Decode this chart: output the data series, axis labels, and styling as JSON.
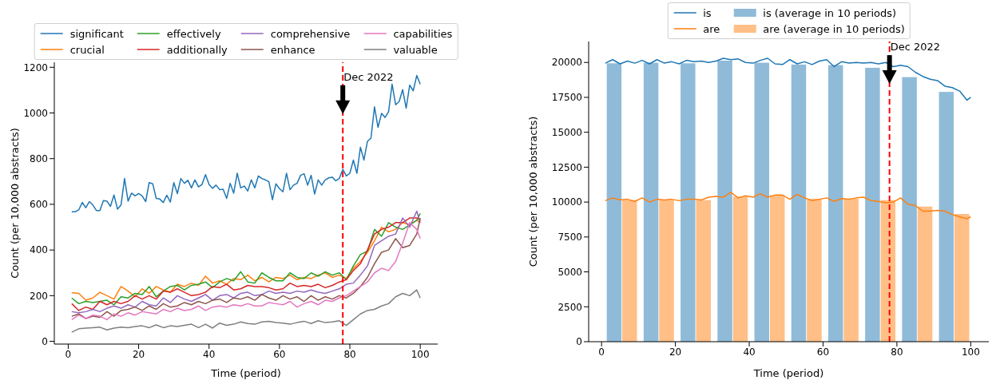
{
  "chart_data": [
    {
      "type": "line",
      "xlabel": "Time (period)",
      "ylabel": "Count (per 10,000 abstracts)",
      "xlim": [
        -3.95,
        104.95
      ],
      "ylim": [
        -12,
        1222
      ],
      "xticks": [
        0,
        20,
        40,
        60,
        80,
        100
      ],
      "yticks": [
        0,
        200,
        400,
        600,
        800,
        1000,
        1200
      ],
      "legend": "top",
      "ref_lines": [
        {
          "axis": "x",
          "value": 78,
          "color": "#ff0000",
          "line_style": "dashed"
        }
      ],
      "annotations": [
        {
          "text": "Dec 2022",
          "x": 78,
          "y": 1160
        }
      ],
      "series": [
        {
          "name": "significant",
          "color": "#1f77b4",
          "x": [
            1,
            2,
            3,
            4,
            5,
            6,
            7,
            8,
            9,
            10,
            11,
            12,
            13,
            14,
            15,
            16,
            17,
            18,
            19,
            20,
            21,
            22,
            23,
            24,
            25,
            26,
            27,
            28,
            29,
            30,
            31,
            32,
            33,
            34,
            35,
            36,
            37,
            38,
            39,
            40,
            41,
            42,
            43,
            44,
            45,
            46,
            47,
            48,
            49,
            50,
            51,
            52,
            53,
            54,
            55,
            56,
            57,
            58,
            59,
            60,
            61,
            62,
            63,
            64,
            65,
            66,
            67,
            68,
            69,
            70,
            71,
            72,
            73,
            74,
            75,
            76,
            77,
            78,
            79,
            80,
            81,
            82,
            83,
            84,
            85,
            86,
            87,
            88,
            89,
            90,
            91,
            92,
            93,
            94,
            95,
            96,
            97,
            98,
            99,
            100
          ],
          "values": [
            567,
            567,
            576,
            608,
            585,
            612,
            597,
            573,
            573,
            616,
            614,
            591,
            641,
            579,
            597,
            713,
            614,
            649,
            637,
            647,
            637,
            612,
            695,
            690,
            626,
            623,
            608,
            640,
            610,
            695,
            647,
            713,
            692,
            705,
            672,
            707,
            676,
            687,
            730,
            687,
            670,
            684,
            664,
            666,
            626,
            692,
            649,
            736,
            672,
            680,
            658,
            707,
            672,
            724,
            713,
            707,
            699,
            620,
            690,
            669,
            655,
            736,
            664,
            684,
            692,
            727,
            734,
            684,
            727,
            645,
            707,
            684,
            707,
            716,
            719,
            703,
            713,
            753,
            724,
            736,
            794,
            736,
            850,
            794,
            876,
            890,
            1027,
            937,
            998,
            980,
            1006,
            1126,
            1036,
            1050,
            1102,
            1021,
            1122,
            1097,
            1164,
            1126
          ]
        },
        {
          "name": "crucial",
          "color": "#ff7f0e",
          "x": [
            1,
            3,
            5,
            7,
            9,
            11,
            13,
            15,
            17,
            19,
            21,
            23,
            25,
            27,
            29,
            31,
            33,
            35,
            37,
            39,
            41,
            43,
            45,
            47,
            49,
            51,
            53,
            55,
            57,
            59,
            61,
            63,
            65,
            67,
            69,
            71,
            73,
            75,
            77,
            79,
            81,
            83,
            85,
            87,
            89,
            91,
            93,
            95,
            97,
            99,
            100
          ],
          "values": [
            213,
            210,
            180,
            190,
            215,
            200,
            185,
            240,
            220,
            195,
            230,
            210,
            240,
            225,
            215,
            250,
            240,
            255,
            245,
            285,
            255,
            265,
            250,
            275,
            270,
            290,
            265,
            280,
            260,
            280,
            275,
            290,
            270,
            280,
            275,
            290,
            300,
            280,
            290,
            275,
            320,
            350,
            390,
            440,
            500,
            480,
            490,
            520,
            510,
            530,
            520
          ]
        },
        {
          "name": "effectively",
          "color": "#2ca02c",
          "x": [
            1,
            3,
            5,
            7,
            9,
            11,
            13,
            15,
            17,
            19,
            21,
            23,
            25,
            27,
            29,
            31,
            33,
            35,
            37,
            39,
            41,
            43,
            45,
            47,
            49,
            51,
            53,
            55,
            57,
            59,
            61,
            63,
            65,
            67,
            69,
            71,
            73,
            75,
            77,
            79,
            81,
            83,
            85,
            87,
            89,
            91,
            93,
            95,
            97,
            99,
            100
          ],
          "values": [
            190,
            165,
            175,
            170,
            175,
            180,
            160,
            195,
            190,
            210,
            205,
            240,
            195,
            220,
            240,
            245,
            225,
            245,
            250,
            260,
            235,
            260,
            275,
            265,
            305,
            260,
            255,
            300,
            280,
            265,
            265,
            300,
            280,
            275,
            300,
            285,
            305,
            290,
            300,
            270,
            330,
            380,
            395,
            490,
            460,
            520,
            500,
            490,
            510,
            530,
            560
          ]
        },
        {
          "name": "additionally",
          "color": "#d62728",
          "x": [
            1,
            3,
            5,
            7,
            9,
            11,
            13,
            15,
            17,
            19,
            21,
            23,
            25,
            27,
            29,
            31,
            33,
            35,
            37,
            39,
            41,
            43,
            45,
            47,
            49,
            51,
            53,
            55,
            57,
            59,
            61,
            63,
            65,
            67,
            69,
            71,
            73,
            75,
            77,
            79,
            81,
            83,
            85,
            87,
            89,
            91,
            93,
            95,
            97,
            99,
            100
          ],
          "values": [
            165,
            135,
            150,
            140,
            175,
            160,
            175,
            165,
            175,
            200,
            185,
            200,
            185,
            220,
            215,
            230,
            215,
            200,
            205,
            215,
            240,
            235,
            250,
            225,
            230,
            245,
            240,
            240,
            235,
            225,
            230,
            255,
            240,
            245,
            240,
            250,
            235,
            245,
            260,
            270,
            310,
            340,
            400,
            470,
            490,
            500,
            520,
            520,
            540,
            540,
            530
          ]
        },
        {
          "name": "comprehensive",
          "color": "#9467bd",
          "x": [
            1,
            3,
            5,
            7,
            9,
            11,
            13,
            15,
            17,
            19,
            21,
            23,
            25,
            27,
            29,
            31,
            33,
            35,
            37,
            39,
            41,
            43,
            45,
            47,
            49,
            51,
            53,
            55,
            57,
            59,
            61,
            63,
            65,
            67,
            69,
            71,
            73,
            75,
            77,
            79,
            81,
            83,
            85,
            87,
            89,
            91,
            93,
            95,
            97,
            99,
            100
          ],
          "values": [
            130,
            125,
            130,
            140,
            130,
            145,
            155,
            145,
            160,
            150,
            175,
            160,
            155,
            190,
            170,
            200,
            185,
            175,
            190,
            205,
            180,
            200,
            205,
            190,
            210,
            215,
            200,
            205,
            220,
            210,
            215,
            210,
            220,
            215,
            225,
            215,
            210,
            220,
            230,
            250,
            255,
            290,
            330,
            420,
            440,
            460,
            470,
            540,
            500,
            570,
            520
          ]
        },
        {
          "name": "enhance",
          "color": "#8c564b",
          "x": [
            1,
            3,
            5,
            7,
            9,
            11,
            13,
            15,
            17,
            19,
            21,
            23,
            25,
            27,
            29,
            31,
            33,
            35,
            37,
            39,
            41,
            43,
            45,
            47,
            49,
            51,
            53,
            55,
            57,
            59,
            61,
            63,
            65,
            67,
            69,
            71,
            73,
            75,
            77,
            79,
            81,
            83,
            85,
            87,
            89,
            91,
            93,
            95,
            97,
            99,
            100
          ],
          "values": [
            110,
            120,
            100,
            110,
            105,
            130,
            110,
            135,
            140,
            150,
            135,
            155,
            140,
            165,
            150,
            155,
            170,
            160,
            175,
            165,
            180,
            185,
            170,
            190,
            185,
            195,
            180,
            205,
            190,
            180,
            200,
            185,
            195,
            175,
            200,
            180,
            195,
            185,
            200,
            190,
            210,
            240,
            280,
            340,
            390,
            400,
            450,
            410,
            420,
            470,
            540
          ]
        },
        {
          "name": "capabilities",
          "color": "#e377c2",
          "x": [
            1,
            3,
            5,
            7,
            9,
            11,
            13,
            15,
            17,
            19,
            21,
            23,
            25,
            27,
            29,
            31,
            33,
            35,
            37,
            39,
            41,
            43,
            45,
            47,
            49,
            51,
            53,
            55,
            57,
            59,
            61,
            63,
            65,
            67,
            69,
            71,
            73,
            75,
            77,
            79,
            81,
            83,
            85,
            87,
            89,
            91,
            93,
            95,
            97,
            99,
            100
          ],
          "values": [
            95,
            115,
            100,
            115,
            110,
            95,
            120,
            110,
            125,
            115,
            130,
            125,
            120,
            140,
            130,
            145,
            135,
            140,
            155,
            135,
            150,
            155,
            150,
            160,
            155,
            165,
            155,
            155,
            170,
            165,
            160,
            175,
            150,
            165,
            175,
            160,
            180,
            175,
            190,
            200,
            220,
            240,
            260,
            300,
            320,
            310,
            350,
            430,
            520,
            490,
            450
          ]
        },
        {
          "name": "valuable",
          "color": "#7f7f7f",
          "x": [
            1,
            3,
            5,
            7,
            9,
            11,
            13,
            15,
            17,
            19,
            21,
            23,
            25,
            27,
            29,
            31,
            33,
            35,
            37,
            39,
            41,
            43,
            45,
            47,
            49,
            51,
            53,
            55,
            57,
            59,
            61,
            63,
            65,
            67,
            69,
            71,
            73,
            75,
            77,
            79,
            81,
            83,
            85,
            87,
            89,
            91,
            93,
            95,
            97,
            99,
            100
          ],
          "values": [
            40,
            55,
            58,
            60,
            62,
            50,
            58,
            62,
            60,
            65,
            68,
            60,
            72,
            60,
            68,
            65,
            70,
            75,
            60,
            75,
            58,
            80,
            70,
            75,
            85,
            78,
            75,
            85,
            88,
            82,
            80,
            75,
            82,
            88,
            78,
            90,
            82,
            85,
            90,
            70,
            95,
            120,
            135,
            140,
            155,
            165,
            195,
            210,
            200,
            225,
            190
          ]
        }
      ]
    },
    {
      "type": "line",
      "xlabel": "Time (period)",
      "ylabel": "Count (per 10,000 abstracts)",
      "xlim": [
        -3.5,
        104.9
      ],
      "ylim": [
        0,
        21500
      ],
      "xticks": [
        0,
        20,
        40,
        60,
        80,
        100
      ],
      "yticks": [
        0,
        2500,
        5000,
        7500,
        10000,
        12500,
        15000,
        17500,
        20000
      ],
      "legend": "top",
      "ref_lines": [
        {
          "axis": "x",
          "value": 78,
          "color": "#ff0000",
          "line_style": "dashed"
        }
      ],
      "annotations": [
        {
          "text": "Dec 2022",
          "x": 78,
          "y": 21150
        }
      ],
      "series": [
        {
          "name": "is",
          "type": "line",
          "color": "#1f77b4",
          "x": [
            1,
            3,
            5,
            7,
            9,
            11,
            13,
            15,
            17,
            19,
            21,
            23,
            25,
            27,
            29,
            31,
            33,
            35,
            37,
            39,
            41,
            43,
            45,
            47,
            49,
            51,
            53,
            55,
            57,
            59,
            61,
            63,
            65,
            67,
            69,
            71,
            73,
            75,
            77,
            79,
            81,
            83,
            85,
            87,
            89,
            91,
            93,
            95,
            97,
            99,
            100
          ],
          "values": [
            19950,
            20200,
            19900,
            20100,
            19950,
            20150,
            19900,
            20200,
            19950,
            20050,
            19900,
            20150,
            20050,
            20100,
            20000,
            20100,
            20300,
            20200,
            20250,
            20000,
            19950,
            20150,
            20300,
            19900,
            19850,
            20200,
            19900,
            20050,
            19850,
            20100,
            20200,
            19700,
            20050,
            19950,
            20000,
            19950,
            20000,
            19900,
            20000,
            19700,
            19800,
            19700,
            19300,
            19000,
            18800,
            18700,
            18300,
            18200,
            17950,
            17300,
            17500
          ]
        },
        {
          "name": "are",
          "type": "line",
          "color": "#ff7f0e",
          "x": [
            1,
            3,
            5,
            7,
            9,
            11,
            13,
            15,
            17,
            19,
            21,
            23,
            25,
            27,
            29,
            31,
            33,
            35,
            37,
            39,
            41,
            43,
            45,
            47,
            49,
            51,
            53,
            55,
            57,
            59,
            61,
            63,
            65,
            67,
            69,
            71,
            73,
            75,
            77,
            79,
            81,
            83,
            85,
            87,
            89,
            91,
            93,
            95,
            97,
            99,
            100
          ],
          "values": [
            10100,
            10300,
            10150,
            10200,
            10050,
            10300,
            10000,
            10200,
            10150,
            10200,
            10100,
            10200,
            10200,
            10150,
            10350,
            10400,
            10350,
            10700,
            10300,
            10450,
            10350,
            10600,
            10350,
            10500,
            10500,
            10200,
            10550,
            10300,
            10100,
            10200,
            10300,
            10050,
            10250,
            10200,
            10300,
            10350,
            10100,
            10050,
            9950,
            10000,
            10300,
            9850,
            9750,
            9350,
            9350,
            9400,
            9350,
            9100,
            8950,
            8800,
            8950
          ]
        },
        {
          "name": "is (average in 10 periods)",
          "type": "bar",
          "color": "#8fbbd9",
          "x": [
            3.5,
            13.5,
            23.5,
            33.5,
            43.5,
            53.5,
            63.5,
            73.5,
            83.5,
            93.5
          ],
          "values": [
            19940,
            19980,
            19940,
            20130,
            19980,
            19850,
            19810,
            19620,
            18950,
            17890
          ]
        },
        {
          "name": "are (average in 10 periods)",
          "type": "bar",
          "color": "#ffbf86",
          "x": [
            7.5,
            17.5,
            27.5,
            37.5,
            47.5,
            57.5,
            67.5,
            77.5,
            87.5,
            97.5
          ],
          "values": [
            10140,
            10140,
            10140,
            10390,
            10490,
            10240,
            10240,
            10140,
            9680,
            9150
          ]
        }
      ]
    }
  ]
}
